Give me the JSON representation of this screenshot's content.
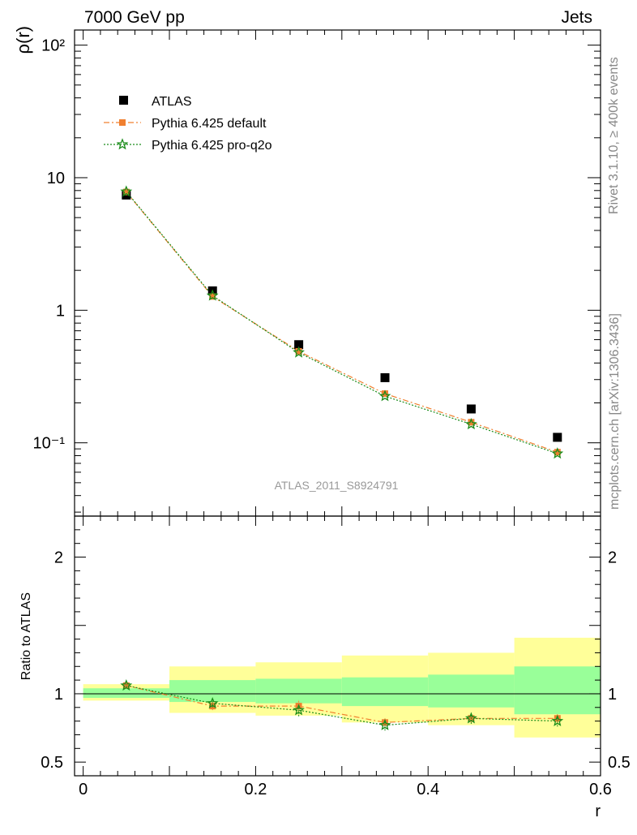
{
  "header": {
    "left": "7000 GeV pp",
    "right": "Jets"
  },
  "side_labels": {
    "rivet": "Rivet 3.1.10, ≥ 400k events",
    "mcplots": "mcplots.cern.ch [arXiv:1306.3436]"
  },
  "watermark": "ATLAS_2011_S8924791",
  "colors": {
    "data": "#000000",
    "pythia_default": "#f08030",
    "pythia_proq2o": "#1a8c1a",
    "band_inner": "#99ff99",
    "band_outer": "#ffff99"
  },
  "chart_data": [
    {
      "type": "line",
      "panel": "main",
      "ylabel": "ρ(r)",
      "yscale": "log",
      "ylim": [
        0.028,
        130
      ],
      "xlim": [
        -0.01,
        0.6
      ],
      "y_ticklabels": [
        "10²",
        "10",
        "1",
        "10⁻¹"
      ],
      "legend": {
        "placement": "top-left",
        "entries": [
          "ATLAS",
          "Pythia 6.425 default",
          "Pythia 6.425 pro-q2o"
        ]
      },
      "x": [
        0.05,
        0.15,
        0.25,
        0.35,
        0.45,
        0.55
      ],
      "series": [
        {
          "name": "ATLAS",
          "marker": "square",
          "values": [
            7.4,
            1.4,
            0.55,
            0.31,
            0.18,
            0.11
          ]
        },
        {
          "name": "Pythia 6.425 default",
          "marker": "square",
          "style": "dashdot",
          "values": [
            7.8,
            1.27,
            0.49,
            0.235,
            0.143,
            0.085
          ]
        },
        {
          "name": "Pythia 6.425 pro-q2o",
          "marker": "star",
          "style": "dotted",
          "values": [
            7.85,
            1.29,
            0.48,
            0.225,
            0.138,
            0.083
          ]
        }
      ]
    },
    {
      "type": "line",
      "panel": "ratio",
      "ylabel": "Ratio to ATLAS",
      "xlabel": "r",
      "ylim": [
        0.4,
        2.3
      ],
      "xlim": [
        -0.01,
        0.6
      ],
      "x_ticklabels": [
        "0",
        "0.2",
        "0.4",
        "0.6"
      ],
      "y_ticklabels": [
        "0.5",
        "1",
        "2"
      ],
      "bins": [
        [
          0.0,
          0.1
        ],
        [
          0.1,
          0.2
        ],
        [
          0.2,
          0.3
        ],
        [
          0.3,
          0.4
        ],
        [
          0.4,
          0.5
        ],
        [
          0.5,
          0.6
        ]
      ],
      "band_inner": [
        [
          0.97,
          1.04
        ],
        [
          0.94,
          1.1
        ],
        [
          0.93,
          1.11
        ],
        [
          0.91,
          1.12
        ],
        [
          0.9,
          1.14
        ],
        [
          0.85,
          1.2
        ]
      ],
      "band_outer": [
        [
          0.95,
          1.07
        ],
        [
          0.86,
          1.2
        ],
        [
          0.84,
          1.23
        ],
        [
          0.79,
          1.28
        ],
        [
          0.77,
          1.3
        ],
        [
          0.68,
          1.41
        ]
      ],
      "x": [
        0.05,
        0.15,
        0.25,
        0.35,
        0.45,
        0.55
      ],
      "series": [
        {
          "name": "Pythia 6.425 default",
          "values": [
            1.06,
            0.91,
            0.91,
            0.79,
            0.82,
            0.82
          ],
          "errors": [
            0.012,
            0.03,
            0.045,
            0.035,
            0.035,
            0.035
          ]
        },
        {
          "name": "Pythia 6.425 pro-q2o",
          "values": [
            1.06,
            0.93,
            0.88,
            0.77,
            0.82,
            0.8
          ],
          "errors": [
            0.012,
            0.03,
            0.045,
            0.04,
            0.04,
            0.04
          ]
        }
      ]
    }
  ]
}
